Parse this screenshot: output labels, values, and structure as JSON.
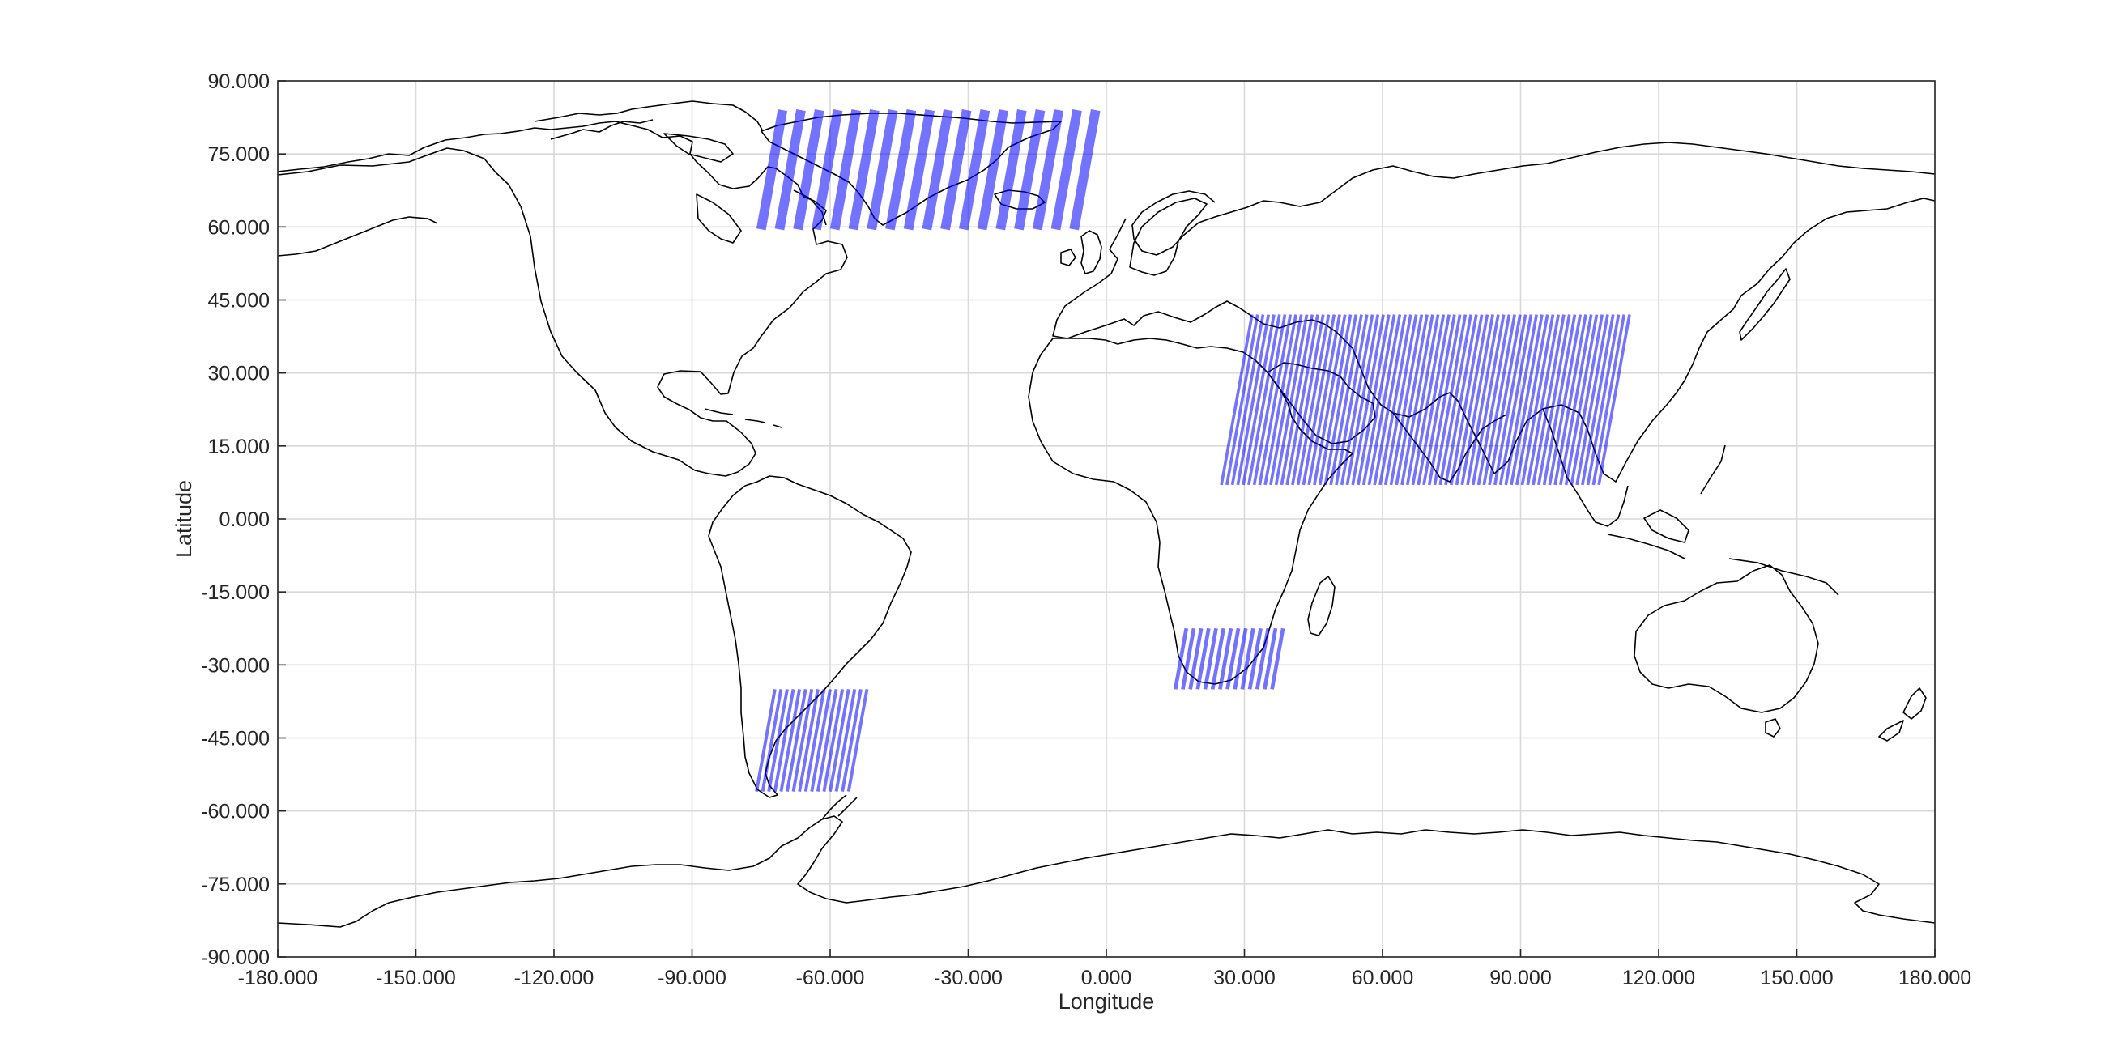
{
  "chart_data": {
    "type": "map",
    "projection": "equirectangular",
    "xlabel": "Longitude",
    "ylabel": "Latitude",
    "xlim": [
      -180,
      180
    ],
    "ylim": [
      -90,
      90
    ],
    "grid": true,
    "xticks": [
      -180,
      -150,
      -120,
      -90,
      -60,
      -30,
      0,
      30,
      60,
      90,
      120,
      150,
      180
    ],
    "yticks": [
      90,
      75,
      60,
      45,
      30,
      15,
      0,
      -15,
      -30,
      -45,
      -60,
      -75,
      -90
    ],
    "xtick_labels": [
      "-180.000",
      "-150.000",
      "-120.000",
      "-90.000",
      "-60.000",
      "-30.000",
      "0.000",
      "30.000",
      "60.000",
      "90.000",
      "120.000",
      "150.000",
      "180.000"
    ],
    "ytick_labels": [
      "90.000",
      "75.000",
      "60.000",
      "45.000",
      "30.000",
      "15.000",
      "0.000",
      "-15.000",
      "-30.000",
      "-45.000",
      "-60.000",
      "-75.000",
      "-90.000"
    ],
    "colors": {
      "coastline": "#000000",
      "swath": "#0000ff",
      "grid": "#d9d9d9",
      "axis": "#262626"
    },
    "swath_regions": [
      {
        "region": "Greenland",
        "lon": [
          -75,
          -7
        ],
        "lat": [
          59.5,
          84
        ],
        "tracks": 18
      },
      {
        "region": "Middle East to Tibet",
        "lon": [
          25,
          107
        ],
        "lat": [
          7,
          42
        ],
        "tracks": 70
      },
      {
        "region": "Southern Africa",
        "lon": [
          15,
          36
        ],
        "lat": [
          -35,
          -22.5
        ],
        "tracks": 14
      },
      {
        "region": "Southern South America",
        "lon": [
          -76,
          -56
        ],
        "lat": [
          -56,
          -35
        ],
        "tracks": 16
      }
    ]
  }
}
